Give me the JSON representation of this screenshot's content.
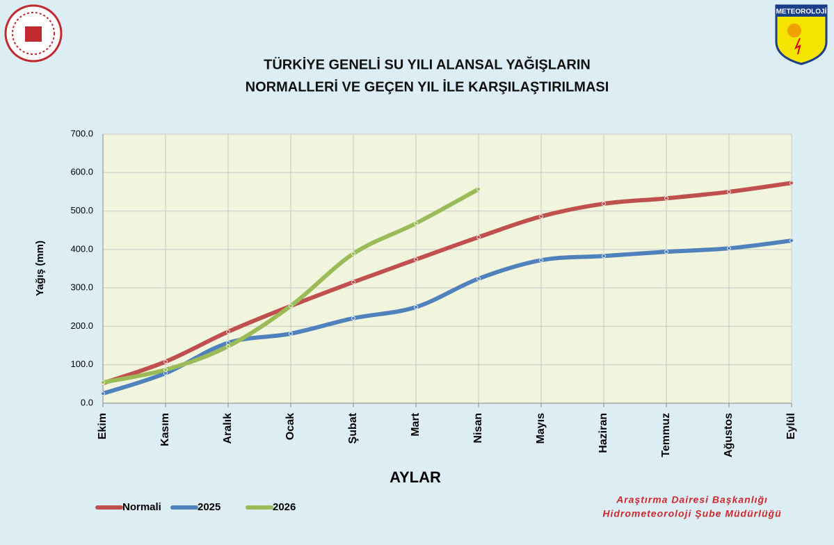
{
  "header": {
    "logo_text": "METEOROLOJİ"
  },
  "chart_data": {
    "type": "line",
    "title": [
      "TÜRKİYE GENELİ SU YILI ALANSAL YAĞIŞLARIN",
      "NORMALLERİ VE GEÇEN YIL İLE KARŞILAŞTIRILMASI"
    ],
    "xlabel": "AYLAR",
    "ylabel": "Yağış (mm)",
    "categories": [
      "Ekim",
      "Kasım",
      "Aralık",
      "Ocak",
      "Şubat",
      "Mart",
      "Nisan",
      "Mayıs",
      "Haziran",
      "Temmuz",
      "Ağustos",
      "Eylül"
    ],
    "series": [
      {
        "name": "Normali",
        "color": "#c0504d",
        "values": [
          52,
          108,
          186,
          253,
          315,
          374,
          432,
          486,
          519,
          533,
          550,
          573
        ]
      },
      {
        "name": "2025",
        "color": "#4f81bd",
        "values": [
          25,
          78,
          157,
          181,
          221,
          250,
          324,
          372,
          383,
          394,
          403,
          423
        ]
      },
      {
        "name": "2026",
        "color": "#9bbb59",
        "values": [
          54,
          87,
          148,
          253,
          389,
          468,
          557,
          null,
          null,
          null,
          null,
          null
        ]
      }
    ],
    "ylim": [
      0,
      700
    ],
    "yticks": [
      {
        "value": 0,
        "label": "0.0"
      },
      {
        "value": 100,
        "label": "100.0"
      },
      {
        "value": 200,
        "label": "200.0"
      },
      {
        "value": 300,
        "label": "300.0"
      },
      {
        "value": 400,
        "label": "400.0"
      },
      {
        "value": 500,
        "label": "500.0"
      },
      {
        "value": 600,
        "label": "600.0"
      },
      {
        "value": 700,
        "label": "700.0"
      }
    ],
    "grid": true,
    "legend": "bottom-left"
  },
  "footer": [
    "Araştırma Dairesi Başkanlığı",
    "Hidrometeoroloji Şube Müdürlüğü"
  ]
}
